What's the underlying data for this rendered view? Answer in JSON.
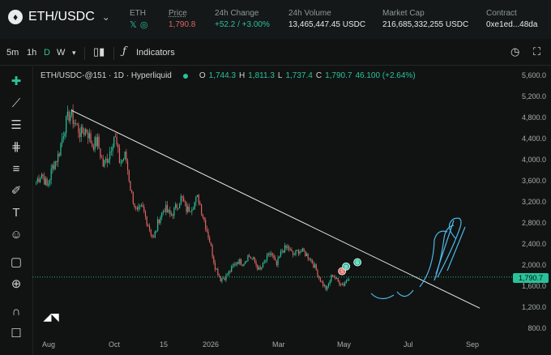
{
  "header": {
    "pair": "ETH/USDC",
    "coin_glyph": "♦",
    "stats": [
      {
        "label": "ETH",
        "value": "",
        "kind": "social"
      },
      {
        "label": "Price",
        "value": "1,790.8",
        "kind": "red"
      },
      {
        "label": "24h Change",
        "value": "+52.2 / +3.00%",
        "kind": "green"
      },
      {
        "label": "24h Volume",
        "value": "13,465,447.45 USDC",
        "kind": "plain"
      },
      {
        "label": "Market Cap",
        "value": "216,685,332,255 USDC",
        "kind": "plain"
      },
      {
        "label": "Contract",
        "value": "0xe1ed...48da",
        "kind": "plain"
      }
    ],
    "social_icons": [
      "x-icon",
      "globe-icon"
    ]
  },
  "toolbar": {
    "intervals": [
      "5m",
      "1h",
      "D",
      "W"
    ],
    "active_interval": "D",
    "indicators_label": "Indicators"
  },
  "legend": {
    "symbol": "ETH/USDC-@151 · 1D · Hyperliquid",
    "o": "1,744.3",
    "h": "1,811.3",
    "l": "1,737.4",
    "c": "1,790.7",
    "change": "46.100 (+2.64%)"
  },
  "price_tag": "1,790.7",
  "chart_data": {
    "type": "candlestick",
    "y_ticks": [
      "5,600.0",
      "5,200.0",
      "4,800.0",
      "4,400.0",
      "4,000.0",
      "3,600.0",
      "3,200.0",
      "2,800.0",
      "2,400.0",
      "2,000.0",
      "1,600.0",
      "1,200.0",
      "800.0"
    ],
    "x_ticks": [
      "Aug",
      "Oct",
      "15",
      "2026",
      "Mar",
      "May",
      "Jul",
      "Sep"
    ],
    "ylim": [
      650,
      5750
    ],
    "close_path": [
      3600,
      3750,
      3500,
      3900,
      4100,
      4600,
      4900,
      4700,
      4500,
      4600,
      4300,
      4350,
      3900,
      4100,
      4500,
      3950,
      4100,
      3400,
      3000,
      3100,
      2800,
      2500,
      2900,
      3100,
      2950,
      3100,
      3300,
      3050,
      3150,
      3300,
      2900,
      2500,
      2000,
      1750,
      1800,
      1950,
      2100,
      2050,
      2200,
      2100,
      1900,
      2100,
      2250,
      2000,
      2300,
      2350,
      2200,
      2300,
      2250,
      2150,
      1950,
      1700,
      1550,
      1850,
      1700,
      1650,
      1790
    ],
    "trendline": {
      "from": [
        0.09,
        4950
      ],
      "to": [
        1.0,
        1200
      ]
    },
    "colors": {
      "up": "#2bc19a",
      "down": "#e06464",
      "line": "#e8ecec",
      "annotation": "#4fb6e6"
    }
  },
  "colors": {
    "accent": "#2bc19a",
    "negative": "#e06464",
    "background": "#101312"
  }
}
